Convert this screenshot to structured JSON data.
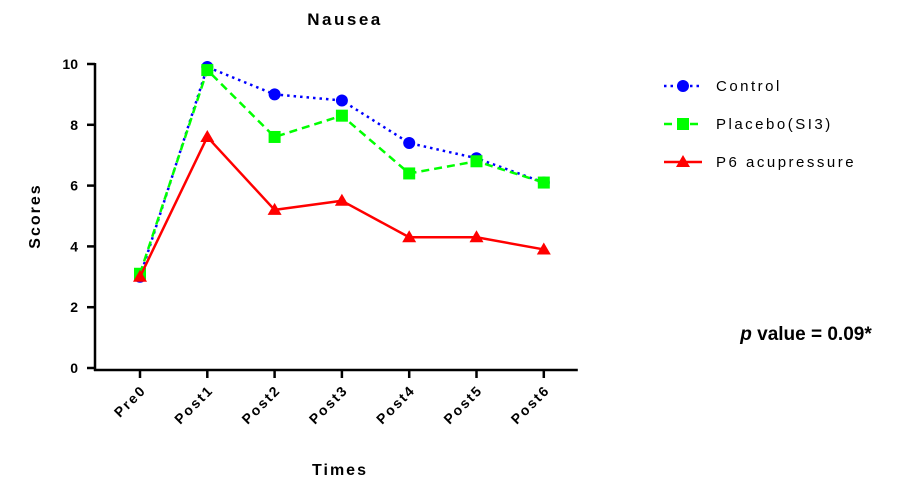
{
  "chart_data": {
    "type": "line",
    "title": "Nausea",
    "xlabel": "Times",
    "ylabel": "Scores",
    "categories": [
      "Pre0",
      "Post1",
      "Post2",
      "Post3",
      "Post4",
      "Post5",
      "Post6"
    ],
    "ylim": [
      0,
      10
    ],
    "yticks": [
      0,
      2,
      4,
      6,
      8,
      10
    ],
    "grid": false,
    "legend_position": "right",
    "series": [
      {
        "name": "Control",
        "values": [
          3.0,
          9.9,
          9.0,
          8.8,
          7.4,
          6.9,
          6.1
        ],
        "color": "#0000ff",
        "marker": "circle",
        "line_style": "dotted"
      },
      {
        "name": "Placebo(SI3)",
        "values": [
          3.1,
          9.8,
          7.6,
          8.3,
          6.4,
          6.8,
          6.1
        ],
        "color": "#00ff00",
        "marker": "square",
        "line_style": "dashed"
      },
      {
        "name": "P6 acupressure",
        "values": [
          3.0,
          7.6,
          5.2,
          5.5,
          4.3,
          4.3,
          3.9
        ],
        "color": "#ff0000",
        "marker": "triangle",
        "line_style": "solid"
      }
    ],
    "annotation": {
      "italic_part": "p",
      "text": " value = 0.09*"
    }
  }
}
